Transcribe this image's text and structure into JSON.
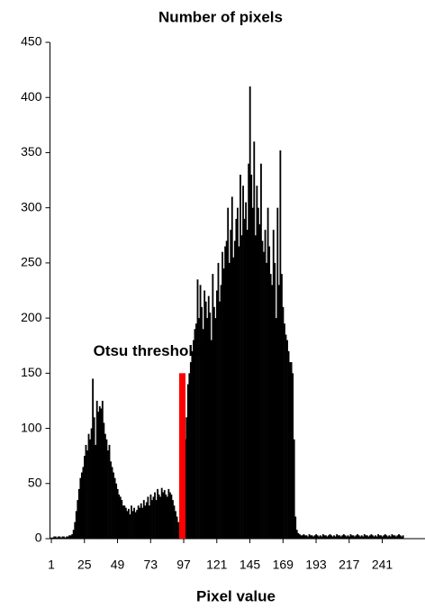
{
  "chart_data": {
    "type": "histogram",
    "title": "Number of pixels",
    "xlabel": "Pixel value",
    "color": "#000000",
    "x": [
      1,
      2,
      3,
      4,
      5,
      6,
      7,
      8,
      9,
      10,
      11,
      12,
      13,
      14,
      15,
      16,
      17,
      18,
      19,
      20,
      21,
      22,
      23,
      24,
      25,
      26,
      27,
      28,
      29,
      30,
      31,
      32,
      33,
      34,
      35,
      36,
      37,
      38,
      39,
      40,
      41,
      42,
      43,
      44,
      45,
      46,
      47,
      48,
      49,
      50,
      51,
      52,
      53,
      54,
      55,
      56,
      57,
      58,
      59,
      60,
      61,
      62,
      63,
      64,
      65,
      66,
      67,
      68,
      69,
      70,
      71,
      72,
      73,
      74,
      75,
      76,
      77,
      78,
      79,
      80,
      81,
      82,
      83,
      84,
      85,
      86,
      87,
      88,
      89,
      90,
      91,
      92,
      93,
      94,
      95,
      96,
      97,
      98,
      99,
      100,
      101,
      102,
      103,
      104,
      105,
      106,
      107,
      108,
      109,
      110,
      111,
      112,
      113,
      114,
      115,
      116,
      117,
      118,
      119,
      120,
      121,
      122,
      123,
      124,
      125,
      126,
      127,
      128,
      129,
      130,
      131,
      132,
      133,
      134,
      135,
      136,
      137,
      138,
      139,
      140,
      141,
      142,
      143,
      144,
      145,
      146,
      147,
      148,
      149,
      150,
      151,
      152,
      153,
      154,
      155,
      156,
      157,
      158,
      159,
      160,
      161,
      162,
      163,
      164,
      165,
      166,
      167,
      168,
      169,
      170,
      171,
      172,
      173,
      174,
      175,
      176,
      177,
      178,
      179,
      180,
      181,
      182,
      183,
      184,
      185,
      186,
      187,
      188,
      189,
      190,
      191,
      192,
      193,
      194,
      195,
      196,
      197,
      198,
      199,
      200,
      201,
      202,
      203,
      204,
      205,
      206,
      207,
      208,
      209,
      210,
      211,
      212,
      213,
      214,
      215,
      216,
      217,
      218,
      219,
      220,
      221,
      222,
      223,
      224,
      225,
      226,
      227,
      228,
      229,
      230,
      231,
      232,
      233,
      234,
      235,
      236,
      237,
      238,
      239,
      240,
      241,
      242,
      243,
      244,
      245,
      246,
      247,
      248,
      249,
      250,
      251,
      252,
      253,
      254,
      255,
      256
    ],
    "values": [
      1,
      1,
      2,
      2,
      1,
      2,
      2,
      1,
      2,
      2,
      1,
      2,
      2,
      3,
      3,
      4,
      8,
      15,
      25,
      35,
      45,
      55,
      60,
      65,
      75,
      85,
      80,
      95,
      90,
      100,
      145,
      110,
      85,
      125,
      115,
      120,
      118,
      125,
      105,
      95,
      90,
      80,
      85,
      70,
      65,
      60,
      55,
      50,
      45,
      40,
      38,
      35,
      30,
      30,
      28,
      25,
      27,
      22,
      30,
      25,
      28,
      24,
      26,
      30,
      28,
      32,
      28,
      35,
      30,
      33,
      38,
      30,
      40,
      35,
      38,
      42,
      35,
      45,
      40,
      38,
      46,
      42,
      44,
      40,
      38,
      45,
      42,
      40,
      35,
      30,
      25,
      20,
      15,
      8,
      5,
      30,
      60,
      90,
      110,
      140,
      150,
      160,
      170,
      180,
      190,
      195,
      235,
      200,
      230,
      210,
      190,
      225,
      215,
      200,
      220,
      205,
      180,
      240,
      210,
      200,
      225,
      250,
      215,
      230,
      260,
      245,
      265,
      270,
      300,
      250,
      280,
      310,
      255,
      270,
      290,
      300,
      265,
      330,
      275,
      320,
      290,
      305,
      280,
      340,
      410,
      330,
      300,
      360,
      275,
      320,
      300,
      285,
      340,
      270,
      260,
      280,
      250,
      300,
      265,
      240,
      230,
      280,
      250,
      200,
      300,
      230,
      352,
      240,
      210,
      195,
      185,
      180,
      170,
      160,
      160,
      150,
      90,
      20,
      8,
      5,
      4,
      3,
      3,
      4,
      3,
      3,
      2,
      4,
      3,
      3,
      2,
      3,
      4,
      3,
      2,
      3,
      2,
      4,
      3,
      3,
      2,
      3,
      4,
      3,
      2,
      3,
      2,
      4,
      3,
      3,
      2,
      3,
      4,
      3,
      2,
      3,
      2,
      4,
      3,
      3,
      2,
      3,
      4,
      3,
      2,
      3,
      2,
      4,
      3,
      3,
      2,
      3,
      4,
      3,
      2,
      3,
      2,
      4,
      3,
      3,
      2,
      3,
      4,
      3,
      2,
      3,
      2,
      4,
      3,
      3,
      2,
      3,
      4,
      3,
      2,
      3
    ],
    "xlim": [
      0,
      272
    ],
    "ylim": [
      0,
      450
    ],
    "xticks": [
      1,
      25,
      49,
      73,
      97,
      121,
      145,
      169,
      193,
      217,
      241
    ],
    "yticks": [
      0,
      50,
      100,
      150,
      200,
      250,
      300,
      350,
      400,
      450
    ],
    "threshold": {
      "label": "Otsu threshold",
      "x": 96,
      "y": 150,
      "color": "#ff0000"
    }
  }
}
